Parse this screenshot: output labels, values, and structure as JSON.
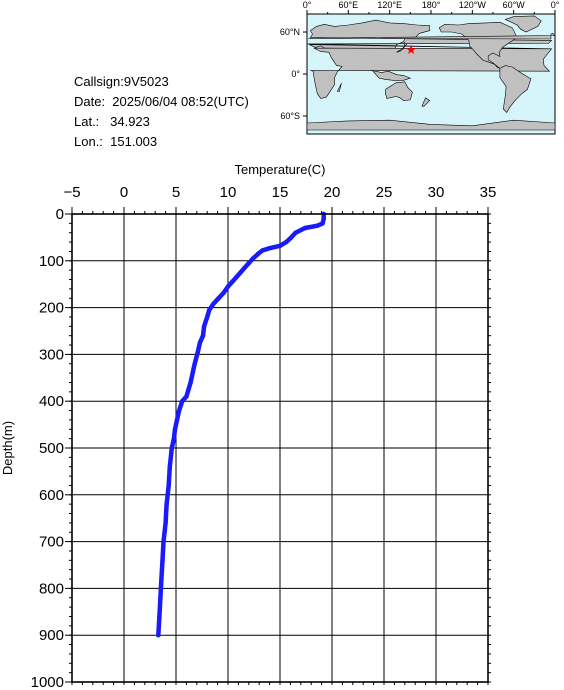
{
  "info": {
    "callsign": "Callsign:9V5023",
    "date": "Date:  2025/06/04 08:52(UTC)",
    "lat": "Lat.:   34.923",
    "lon": "Lon.:  151.003"
  },
  "map": {
    "top_labels": [
      "0°",
      "60°E",
      "120°E",
      "180°",
      "120°W",
      "60°W",
      "0°"
    ],
    "left_labels": [
      "60°N",
      "0°",
      "60°S"
    ],
    "station": {
      "lat": 34.923,
      "lon": 151.003
    },
    "colors": {
      "ocean": "#d6f5fb",
      "land": "#c0c0c0",
      "marker": "#ff0000"
    }
  },
  "chart_data": {
    "type": "line",
    "title": "",
    "xlabel": "Temperature(C)",
    "ylabel": "Depth(m)",
    "xlim": [
      -5,
      35
    ],
    "ylim": [
      0,
      1000
    ],
    "y_inverted": true,
    "x_position": "top",
    "x_ticks": [
      -5,
      0,
      5,
      10,
      15,
      20,
      25,
      30,
      35
    ],
    "y_ticks": [
      0,
      100,
      200,
      300,
      400,
      500,
      600,
      700,
      800,
      900,
      1000
    ],
    "grid": true,
    "series": [
      {
        "color": "#1a1aff",
        "points": [
          [
            19.2,
            0
          ],
          [
            19.2,
            10
          ],
          [
            19.1,
            20
          ],
          [
            18.6,
            25
          ],
          [
            17.4,
            30
          ],
          [
            16.5,
            40
          ],
          [
            16.0,
            52
          ],
          [
            15.6,
            60
          ],
          [
            15.0,
            68
          ],
          [
            14.0,
            73
          ],
          [
            13.3,
            78
          ],
          [
            12.9,
            85
          ],
          [
            12.4,
            95
          ],
          [
            12.0,
            105
          ],
          [
            11.6,
            115
          ],
          [
            11.2,
            125
          ],
          [
            10.8,
            135
          ],
          [
            10.4,
            145
          ],
          [
            10.0,
            155
          ],
          [
            9.6,
            168
          ],
          [
            9.1,
            180
          ],
          [
            8.6,
            192
          ],
          [
            8.2,
            205
          ],
          [
            8.0,
            220
          ],
          [
            7.7,
            240
          ],
          [
            7.6,
            260
          ],
          [
            7.3,
            275
          ],
          [
            7.1,
            295
          ],
          [
            6.8,
            320
          ],
          [
            6.6,
            340
          ],
          [
            6.4,
            360
          ],
          [
            6.2,
            375
          ],
          [
            6.0,
            390
          ],
          [
            5.6,
            400
          ],
          [
            5.3,
            420
          ],
          [
            5.1,
            440
          ],
          [
            4.9,
            460
          ],
          [
            4.8,
            480
          ],
          [
            4.6,
            500
          ],
          [
            4.4,
            540
          ],
          [
            4.3,
            580
          ],
          [
            4.1,
            620
          ],
          [
            4.0,
            660
          ],
          [
            3.8,
            700
          ],
          [
            3.7,
            740
          ],
          [
            3.6,
            780
          ],
          [
            3.5,
            820
          ],
          [
            3.4,
            860
          ],
          [
            3.3,
            900
          ]
        ]
      }
    ]
  }
}
